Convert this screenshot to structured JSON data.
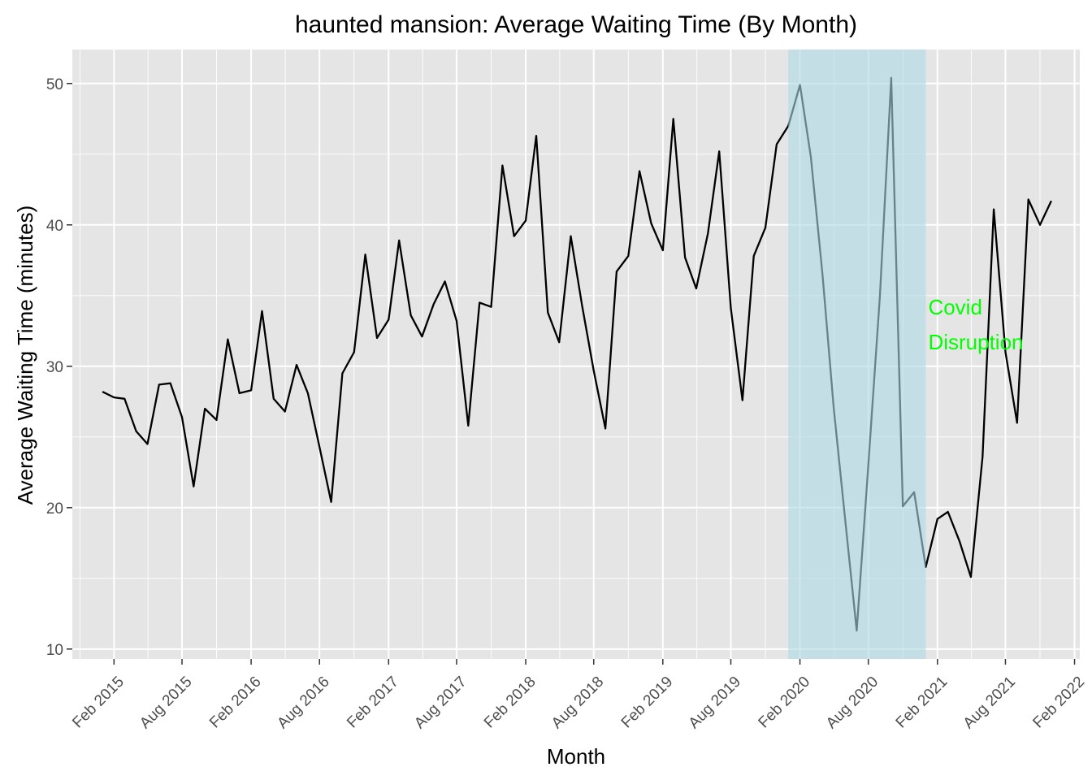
{
  "chart_data": {
    "type": "line",
    "title": "haunted mansion: Average Waiting Time (By Month)",
    "xlabel": "Month",
    "ylabel": "Average Waiting Time (minutes)",
    "xlim": [
      "2014-10-13",
      "2022-02-15"
    ],
    "ylim": [
      9.3,
      52.4
    ],
    "grid": true,
    "legend": "none",
    "x_ticks": [
      "2015-02-01",
      "2015-08-01",
      "2016-02-01",
      "2016-08-01",
      "2017-02-01",
      "2017-08-01",
      "2018-02-01",
      "2018-08-01",
      "2019-02-01",
      "2019-08-01",
      "2020-02-01",
      "2020-08-01",
      "2021-02-01",
      "2021-08-01",
      "2022-02-01"
    ],
    "x_tick_labels": [
      "Feb 2015",
      "Aug 2015",
      "Feb 2016",
      "Aug 2016",
      "Feb 2017",
      "Aug 2017",
      "Feb 2018",
      "Aug 2018",
      "Feb 2019",
      "Aug 2019",
      "Feb 2020",
      "Aug 2020",
      "Feb 2021",
      "Aug 2021",
      "Feb 2022"
    ],
    "y_ticks": [
      10,
      20,
      30,
      40,
      50
    ],
    "y_minor": [
      15,
      25,
      35,
      45
    ],
    "colors": {
      "line": "#000000",
      "panel": "#e5e5e5",
      "grid": "#ffffff",
      "highlight": "#add8e6",
      "annotation": "#00ff00",
      "tick_text": "#4d4d4d"
    },
    "highlight": {
      "start": "2020-01-01",
      "end": "2021-01-01"
    },
    "annotation": {
      "lines": [
        "Covid",
        "Disruption"
      ],
      "x": "2021-01-01",
      "y": 33.3
    },
    "series": [
      {
        "points": [
          [
            "2015-01-01",
            28.2
          ],
          [
            "2015-02-01",
            27.8
          ],
          [
            "2015-03-01",
            27.7
          ],
          [
            "2015-04-01",
            25.4
          ],
          [
            "2015-05-01",
            24.5
          ],
          [
            "2015-06-01",
            28.7
          ],
          [
            "2015-07-01",
            28.8
          ],
          [
            "2015-08-01",
            26.4
          ],
          [
            "2015-09-01",
            21.5
          ],
          [
            "2015-10-01",
            27.0
          ],
          [
            "2015-11-01",
            26.2
          ],
          [
            "2015-12-01",
            31.9
          ],
          [
            "2016-01-01",
            28.1
          ],
          [
            "2016-02-01",
            28.3
          ],
          [
            "2016-03-01",
            33.9
          ],
          [
            "2016-04-01",
            27.7
          ],
          [
            "2016-05-01",
            26.8
          ],
          [
            "2016-06-01",
            30.1
          ],
          [
            "2016-07-01",
            28.1
          ],
          [
            "2016-08-01",
            24.3
          ],
          [
            "2016-09-01",
            20.4
          ],
          [
            "2016-10-01",
            29.5
          ],
          [
            "2016-11-01",
            31.0
          ],
          [
            "2016-12-01",
            37.9
          ],
          [
            "2017-01-01",
            32.0
          ],
          [
            "2017-02-01",
            33.3
          ],
          [
            "2017-03-01",
            38.9
          ],
          [
            "2017-04-01",
            33.6
          ],
          [
            "2017-05-01",
            32.1
          ],
          [
            "2017-06-01",
            34.4
          ],
          [
            "2017-07-01",
            36.0
          ],
          [
            "2017-08-01",
            33.2
          ],
          [
            "2017-09-01",
            25.8
          ],
          [
            "2017-10-01",
            34.5
          ],
          [
            "2017-11-01",
            34.2
          ],
          [
            "2017-12-01",
            44.2
          ],
          [
            "2018-01-01",
            39.2
          ],
          [
            "2018-02-01",
            40.3
          ],
          [
            "2018-03-01",
            46.3
          ],
          [
            "2018-04-01",
            33.8
          ],
          [
            "2018-05-01",
            31.7
          ],
          [
            "2018-06-01",
            39.2
          ],
          [
            "2018-07-01",
            34.3
          ],
          [
            "2018-08-01",
            29.7
          ],
          [
            "2018-09-01",
            25.6
          ],
          [
            "2018-10-01",
            36.7
          ],
          [
            "2018-11-01",
            37.8
          ],
          [
            "2018-12-01",
            43.8
          ],
          [
            "2019-01-01",
            40.1
          ],
          [
            "2019-02-01",
            38.2
          ],
          [
            "2019-03-01",
            47.5
          ],
          [
            "2019-04-01",
            37.7
          ],
          [
            "2019-05-01",
            35.5
          ],
          [
            "2019-06-01",
            39.4
          ],
          [
            "2019-07-01",
            45.2
          ],
          [
            "2019-08-01",
            34.1
          ],
          [
            "2019-09-01",
            27.6
          ],
          [
            "2019-10-01",
            37.8
          ],
          [
            "2019-11-01",
            39.8
          ],
          [
            "2019-12-01",
            45.7
          ],
          [
            "2020-01-01",
            47.0
          ],
          [
            "2020-02-01",
            49.9
          ],
          [
            "2020-03-01",
            44.8
          ],
          [
            "2020-04-01",
            36.5
          ],
          [
            "2020-05-01",
            27.0
          ],
          [
            "2020-06-01",
            19.0
          ],
          [
            "2020-07-01",
            11.3
          ],
          [
            "2020-08-01",
            23.0
          ],
          [
            "2020-09-01",
            35.0
          ],
          [
            "2020-10-01",
            50.4
          ],
          [
            "2020-11-01",
            20.1
          ],
          [
            "2020-12-01",
            21.1
          ],
          [
            "2021-01-01",
            15.8
          ],
          [
            "2021-02-01",
            19.2
          ],
          [
            "2021-03-01",
            19.7
          ],
          [
            "2021-04-01",
            17.6
          ],
          [
            "2021-05-01",
            15.1
          ],
          [
            "2021-06-01",
            23.6
          ],
          [
            "2021-07-01",
            41.1
          ],
          [
            "2021-08-01",
            31.0
          ],
          [
            "2021-09-01",
            26.0
          ],
          [
            "2021-10-01",
            41.8
          ],
          [
            "2021-11-01",
            40.0
          ],
          [
            "2021-12-01",
            41.7
          ]
        ]
      }
    ]
  }
}
